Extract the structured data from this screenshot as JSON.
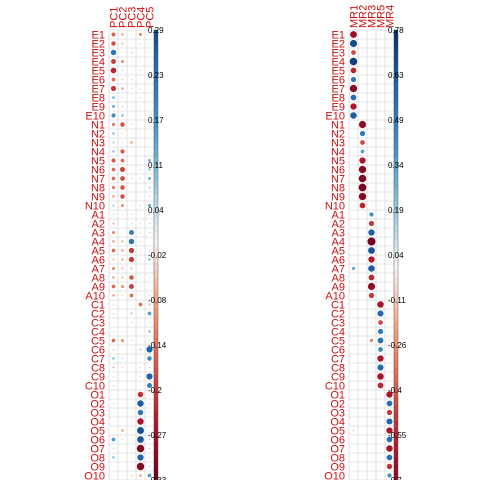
{
  "chart_data": [
    {
      "type": "heatmap",
      "subtype": "correlation-circle-plot",
      "title": "",
      "rows": [
        "E1",
        "E2",
        "E3",
        "E4",
        "E5",
        "E6",
        "E7",
        "E8",
        "E9",
        "E10",
        "N1",
        "N2",
        "N3",
        "N4",
        "N5",
        "N6",
        "N7",
        "N8",
        "N9",
        "N10",
        "A1",
        "A2",
        "A3",
        "A4",
        "A5",
        "A6",
        "A7",
        "A8",
        "A9",
        "A10",
        "C1",
        "C2",
        "C3",
        "C4",
        "C5",
        "C6",
        "C7",
        "C8",
        "C9",
        "C10",
        "O1",
        "O2",
        "O3",
        "O4",
        "O5",
        "O6",
        "O7",
        "O8",
        "O9",
        "O10"
      ],
      "columns": [
        "PC1",
        "PC2",
        "PC3",
        "PC4",
        "PC5"
      ],
      "values": [
        [
          -0.16,
          -0.1,
          0.0,
          -0.12,
          0.02
        ],
        [
          -0.18,
          -0.08,
          0.0,
          0.05,
          0.01
        ],
        [
          0.22,
          -0.03,
          -0.06,
          0.0,
          0.03
        ],
        [
          -0.2,
          -0.12,
          0.0,
          0.02,
          0.0
        ],
        [
          -0.23,
          -0.06,
          0.0,
          -0.04,
          0.0
        ],
        [
          -0.15,
          -0.06,
          0.05,
          0.0,
          0.0
        ],
        [
          -0.21,
          -0.1,
          -0.05,
          0.04,
          0.0
        ],
        [
          0.11,
          0.05,
          0.0,
          0.03,
          0.0
        ],
        [
          0.12,
          0.06,
          0.0,
          0.0,
          0.0
        ],
        [
          0.17,
          0.1,
          0.0,
          0.02,
          0.0
        ],
        [
          -0.13,
          -0.18,
          -0.05,
          0.0,
          0.0
        ],
        [
          0.1,
          -0.05,
          0.0,
          0.0,
          0.0
        ],
        [
          0.08,
          0.04,
          -0.1,
          0.0,
          0.0
        ],
        [
          0.1,
          -0.17,
          0.0,
          0.0,
          0.0
        ],
        [
          -0.17,
          -0.15,
          0.0,
          0.0,
          0.12
        ],
        [
          -0.15,
          -0.2,
          0.0,
          -0.03,
          0.1
        ],
        [
          -0.15,
          -0.19,
          0.05,
          -0.05,
          0.12
        ],
        [
          -0.13,
          -0.18,
          0.0,
          0.0,
          0.08
        ],
        [
          -0.1,
          -0.18,
          0.0,
          0.0,
          0.05
        ],
        [
          0.08,
          -0.12,
          0.0,
          -0.05,
          0.13
        ],
        [
          0.05,
          -0.03,
          0.05,
          0.0,
          0.03
        ],
        [
          -0.08,
          0.0,
          0.05,
          0.04,
          0.06
        ],
        [
          -0.12,
          0.0,
          0.2,
          0.04,
          0.06
        ],
        [
          -0.1,
          -0.08,
          0.22,
          -0.05,
          0.0
        ],
        [
          -0.15,
          -0.1,
          -0.21,
          0.0,
          0.05
        ],
        [
          -0.08,
          -0.09,
          -0.21,
          0.0,
          0.1
        ],
        [
          -0.12,
          -0.08,
          0.08,
          0.0,
          0.0
        ],
        [
          -0.1,
          -0.08,
          -0.18,
          0.0,
          0.05
        ],
        [
          -0.15,
          -0.12,
          -0.2,
          0.03,
          0.0
        ],
        [
          -0.1,
          -0.05,
          -0.15,
          0.0,
          0.05
        ],
        [
          0.03,
          0.0,
          0.0,
          -0.15,
          -0.08
        ],
        [
          0.05,
          0.0,
          -0.08,
          0.0,
          0.15
        ],
        [
          0.0,
          0.0,
          0.05,
          0.02,
          0.05
        ],
        [
          0.05,
          0.03,
          0.0,
          0.0,
          0.1
        ],
        [
          -0.15,
          -0.12,
          -0.05,
          0.0,
          0.0
        ],
        [
          0.06,
          0.0,
          0.0,
          -0.08,
          0.25
        ],
        [
          0.1,
          0.06,
          0.0,
          0.0,
          0.18
        ],
        [
          -0.08,
          -0.05,
          0.0,
          0.05,
          0.05
        ],
        [
          0.03,
          0.0,
          0.0,
          -0.05,
          0.25
        ],
        [
          -0.05,
          0.0,
          0.0,
          0.0,
          0.2
        ],
        [
          0.0,
          0.0,
          0.0,
          -0.22,
          0.0
        ],
        [
          -0.05,
          0.0,
          0.0,
          0.26,
          0.05
        ],
        [
          0.0,
          0.0,
          0.0,
          0.22,
          -0.03
        ],
        [
          0.0,
          0.0,
          0.0,
          -0.26,
          0.0
        ],
        [
          0.0,
          -0.1,
          0.0,
          0.28,
          0.0
        ],
        [
          0.15,
          0.05,
          0.0,
          0.27,
          -0.06
        ],
        [
          -0.05,
          0.0,
          0.0,
          -0.3,
          0.06
        ],
        [
          0.1,
          0.0,
          0.0,
          0.25,
          -0.05
        ],
        [
          0.0,
          0.0,
          0.0,
          -0.3,
          0.04
        ],
        [
          0.0,
          0.0,
          -0.06,
          -0.1,
          0.15
        ]
      ],
      "colorbar_ticks": [
        "0.29",
        "0.23",
        "0.17",
        "0.11",
        "0.04",
        "-0.02",
        "-0.08",
        "-0.14",
        "-0.2",
        "-0.27",
        "-0.33"
      ],
      "colorbar_range": [
        -0.33,
        0.29
      ]
    },
    {
      "type": "heatmap",
      "subtype": "correlation-circle-plot",
      "title": "",
      "rows": [
        "E1",
        "E2",
        "E3",
        "E4",
        "E5",
        "E6",
        "E7",
        "E8",
        "E9",
        "E10",
        "N1",
        "N2",
        "N3",
        "N4",
        "N5",
        "N6",
        "N7",
        "N8",
        "N9",
        "N10",
        "A1",
        "A2",
        "A3",
        "A4",
        "A5",
        "A6",
        "A7",
        "A8",
        "A9",
        "A10",
        "C1",
        "C2",
        "C3",
        "C4",
        "C5",
        "C6",
        "C7",
        "C8",
        "C9",
        "C10",
        "O1",
        "O2",
        "O3",
        "O4",
        "O5",
        "O6",
        "O7",
        "O8",
        "O9",
        "O10"
      ],
      "columns": [
        "MR1",
        "MR2",
        "MR3",
        "MR5",
        "MR4"
      ],
      "values": [
        [
          -0.65,
          0.0,
          0.0,
          0.0,
          0.0
        ],
        [
          0.68,
          0.0,
          0.0,
          0.0,
          0.0
        ],
        [
          -0.45,
          -0.08,
          -0.05,
          0.0,
          0.0
        ],
        [
          0.72,
          0.0,
          0.0,
          0.0,
          0.0
        ],
        [
          -0.55,
          0.0,
          0.0,
          0.0,
          0.0
        ],
        [
          0.5,
          0.0,
          0.0,
          0.0,
          0.0
        ],
        [
          -0.7,
          0.0,
          0.0,
          0.0,
          0.0
        ],
        [
          0.55,
          0.0,
          0.0,
          0.0,
          0.0
        ],
        [
          -0.6,
          0.0,
          0.0,
          0.0,
          0.0
        ],
        [
          0.62,
          0.0,
          0.0,
          0.0,
          0.0
        ],
        [
          0.0,
          -0.68,
          0.0,
          0.0,
          0.0
        ],
        [
          0.0,
          0.5,
          0.0,
          0.0,
          0.0
        ],
        [
          0.0,
          -0.45,
          0.0,
          0.0,
          0.0
        ],
        [
          0.0,
          0.35,
          0.0,
          0.0,
          0.0
        ],
        [
          0.0,
          -0.6,
          0.0,
          0.0,
          0.0
        ],
        [
          0.0,
          -0.7,
          0.0,
          0.0,
          0.0
        ],
        [
          0.0,
          -0.72,
          0.0,
          0.0,
          0.0
        ],
        [
          0.0,
          -0.74,
          0.0,
          0.0,
          0.0
        ],
        [
          0.0,
          -0.7,
          0.0,
          0.0,
          0.0
        ],
        [
          0.0,
          -0.55,
          0.0,
          0.0,
          0.0
        ],
        [
          0.0,
          0.0,
          0.4,
          0.0,
          0.0
        ],
        [
          0.0,
          0.0,
          -0.5,
          0.0,
          0.0
        ],
        [
          0.0,
          0.0,
          0.6,
          0.0,
          0.0
        ],
        [
          0.0,
          0.0,
          -0.76,
          0.0,
          0.0
        ],
        [
          0.0,
          0.0,
          0.65,
          0.0,
          0.0
        ],
        [
          0.0,
          0.0,
          -0.6,
          0.0,
          0.0
        ],
        [
          0.3,
          0.0,
          0.62,
          0.0,
          0.0
        ],
        [
          0.0,
          0.0,
          -0.55,
          0.0,
          0.0
        ],
        [
          0.0,
          0.0,
          -0.68,
          0.0,
          0.0
        ],
        [
          0.0,
          0.0,
          -0.5,
          0.0,
          0.0
        ],
        [
          0.0,
          0.0,
          0.0,
          -0.62,
          0.0
        ],
        [
          0.0,
          0.0,
          0.0,
          0.58,
          0.0
        ],
        [
          0.0,
          0.0,
          0.0,
          -0.45,
          0.0
        ],
        [
          0.0,
          0.0,
          0.0,
          0.5,
          0.0
        ],
        [
          0.0,
          0.0,
          -0.3,
          0.55,
          0.0
        ],
        [
          0.0,
          0.0,
          0.0,
          0.45,
          0.0
        ],
        [
          0.0,
          0.0,
          0.0,
          -0.6,
          0.0
        ],
        [
          0.0,
          0.0,
          0.0,
          0.58,
          0.0
        ],
        [
          0.0,
          0.0,
          0.0,
          -0.62,
          0.0
        ],
        [
          0.0,
          0.0,
          0.0,
          -0.55,
          0.0
        ],
        [
          0.0,
          0.0,
          0.0,
          0.0,
          -0.6
        ],
        [
          0.0,
          0.0,
          0.0,
          0.0,
          0.55
        ],
        [
          0.0,
          0.0,
          0.0,
          0.0,
          -0.5
        ],
        [
          0.0,
          0.0,
          0.0,
          0.0,
          0.58
        ],
        [
          -0.15,
          0.0,
          0.0,
          0.0,
          -0.6
        ],
        [
          0.0,
          0.0,
          0.0,
          0.0,
          0.55
        ],
        [
          0.0,
          0.0,
          0.0,
          0.0,
          -0.62
        ],
        [
          0.0,
          0.0,
          0.0,
          0.0,
          0.55
        ],
        [
          0.0,
          0.0,
          0.0,
          0.0,
          -0.52
        ],
        [
          0.0,
          0.0,
          0.0,
          0.0,
          0.4
        ]
      ],
      "colorbar_ticks": [
        "0.78",
        "0.63",
        "0.49",
        "0.34",
        "0.19",
        "0.04",
        "-0.11",
        "-0.26",
        "-0.4",
        "-0.55",
        "-0.7"
      ],
      "colorbar_range": [
        -0.7,
        0.78
      ]
    }
  ]
}
